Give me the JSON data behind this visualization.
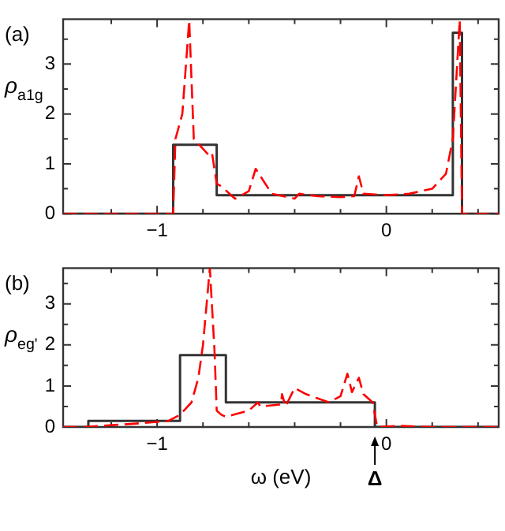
{
  "chart_data": [
    {
      "type": "line",
      "ylabel": "ρ$_{a1g}$",
      "annotations": [
        "(a)"
      ],
      "xlim": [
        -1.41,
        0.49
      ],
      "ylim": [
        0,
        3.9
      ],
      "xticks": [
        {
          "value": -1.2,
          "label": null
        },
        {
          "value": -1,
          "label": "−1"
        },
        {
          "value": -0.8,
          "label": null
        },
        {
          "value": -0.6,
          "label": null
        },
        {
          "value": -0.4,
          "label": null
        },
        {
          "value": -0.2,
          "label": null
        },
        0,
        {
          "value": 0.2,
          "label": null
        },
        {
          "value": 0.4,
          "label": null
        }
      ],
      "yticks": [
        0,
        {
          "value": 0.5,
          "label": null
        },
        1,
        {
          "value": 1.5,
          "label": null
        },
        2,
        {
          "value": 2.5,
          "label": null
        },
        3,
        {
          "value": 3.5,
          "label": null
        }
      ],
      "grid": false,
      "legend": false,
      "series": [
        {
          "type": "step",
          "color": "#333333",
          "line_style": "solid",
          "x": [
            -1.41,
            -0.93,
            -0.74,
            0.29,
            0.33,
            0.49
          ],
          "values": [
            0,
            1.38,
            0.37,
            3.63,
            0,
            0
          ]
        },
        {
          "type": "line",
          "color": "#ff0000",
          "line_style": "dashed",
          "x": [
            -1.41,
            -0.93,
            -0.92,
            -0.89,
            -0.86,
            -0.84,
            -0.77,
            -0.76,
            -0.74,
            -0.72,
            -0.66,
            -0.6,
            -0.57,
            -0.5,
            -0.4,
            -0.38,
            -0.3,
            -0.2,
            -0.14,
            -0.12,
            -0.1,
            0,
            0.1,
            0.2,
            0.26,
            0.29,
            0.32,
            0.33,
            0.49
          ],
          "values": [
            0,
            0,
            1.5,
            2,
            3.88,
            1.5,
            1.15,
            1.2,
            0.6,
            0.55,
            0.3,
            0.45,
            0.9,
            0.4,
            0.3,
            0.4,
            0.35,
            0.33,
            0.35,
            0.75,
            0.4,
            0.37,
            0.4,
            0.5,
            0.8,
            1.5,
            3.88,
            0,
            0
          ]
        }
      ]
    },
    {
      "type": "line",
      "ylabel": "ρ$_{eg'}$",
      "xlabel": "ω (eV)",
      "annotations": [
        "(b)",
        {
          "text": "Δ",
          "x": -0.05,
          "y": 0
        }
      ],
      "xlim": [
        -1.41,
        0.49
      ],
      "ylim": [
        0,
        3.87
      ],
      "xticks": [
        {
          "value": -1.2,
          "label": null
        },
        {
          "value": -1,
          "label": "−1"
        },
        {
          "value": -0.8,
          "label": null
        },
        {
          "value": -0.6,
          "label": null
        },
        {
          "value": -0.4,
          "label": null
        },
        {
          "value": -0.2,
          "label": null
        },
        0,
        {
          "value": 0.2,
          "label": null
        },
        {
          "value": 0.4,
          "label": null
        }
      ],
      "yticks": [
        0,
        {
          "value": 0.5,
          "label": null
        },
        1,
        {
          "value": 1.5,
          "label": null
        },
        2,
        {
          "value": 2.5,
          "label": null
        },
        3,
        {
          "value": 3.5,
          "label": null
        }
      ],
      "grid": false,
      "legend": false,
      "series": [
        {
          "type": "step",
          "color": "#333333",
          "line_style": "solid",
          "x": [
            -1.41,
            -1.3,
            -0.9,
            -0.7,
            -0.05,
            0.49
          ],
          "values": [
            0,
            0.15,
            1.75,
            0.6,
            0,
            0
          ]
        },
        {
          "type": "line",
          "color": "#ff0000",
          "line_style": "dashed",
          "x": [
            -1.41,
            -1.32,
            -1.1,
            -0.95,
            -0.9,
            -0.85,
            -0.82,
            -0.8,
            -0.77,
            -0.75,
            -0.74,
            -0.72,
            -0.7,
            -0.6,
            -0.56,
            -0.55,
            -0.46,
            -0.455,
            -0.44,
            -0.4,
            -0.35,
            -0.25,
            -0.2,
            -0.17,
            -0.15,
            -0.12,
            -0.1,
            -0.06,
            -0.04,
            0.05,
            0.2,
            0.49
          ],
          "values": [
            0,
            0,
            0.08,
            0.15,
            0.3,
            0.6,
            1.2,
            2,
            3.87,
            1.9,
            0.4,
            0.3,
            0.25,
            0.4,
            0.6,
            0.5,
            0.55,
            0.8,
            0.5,
            0.95,
            0.8,
            0.6,
            0.75,
            1.3,
            0.85,
            1.2,
            0.8,
            0.6,
            0,
            0.03,
            0,
            0
          ]
        }
      ]
    }
  ]
}
